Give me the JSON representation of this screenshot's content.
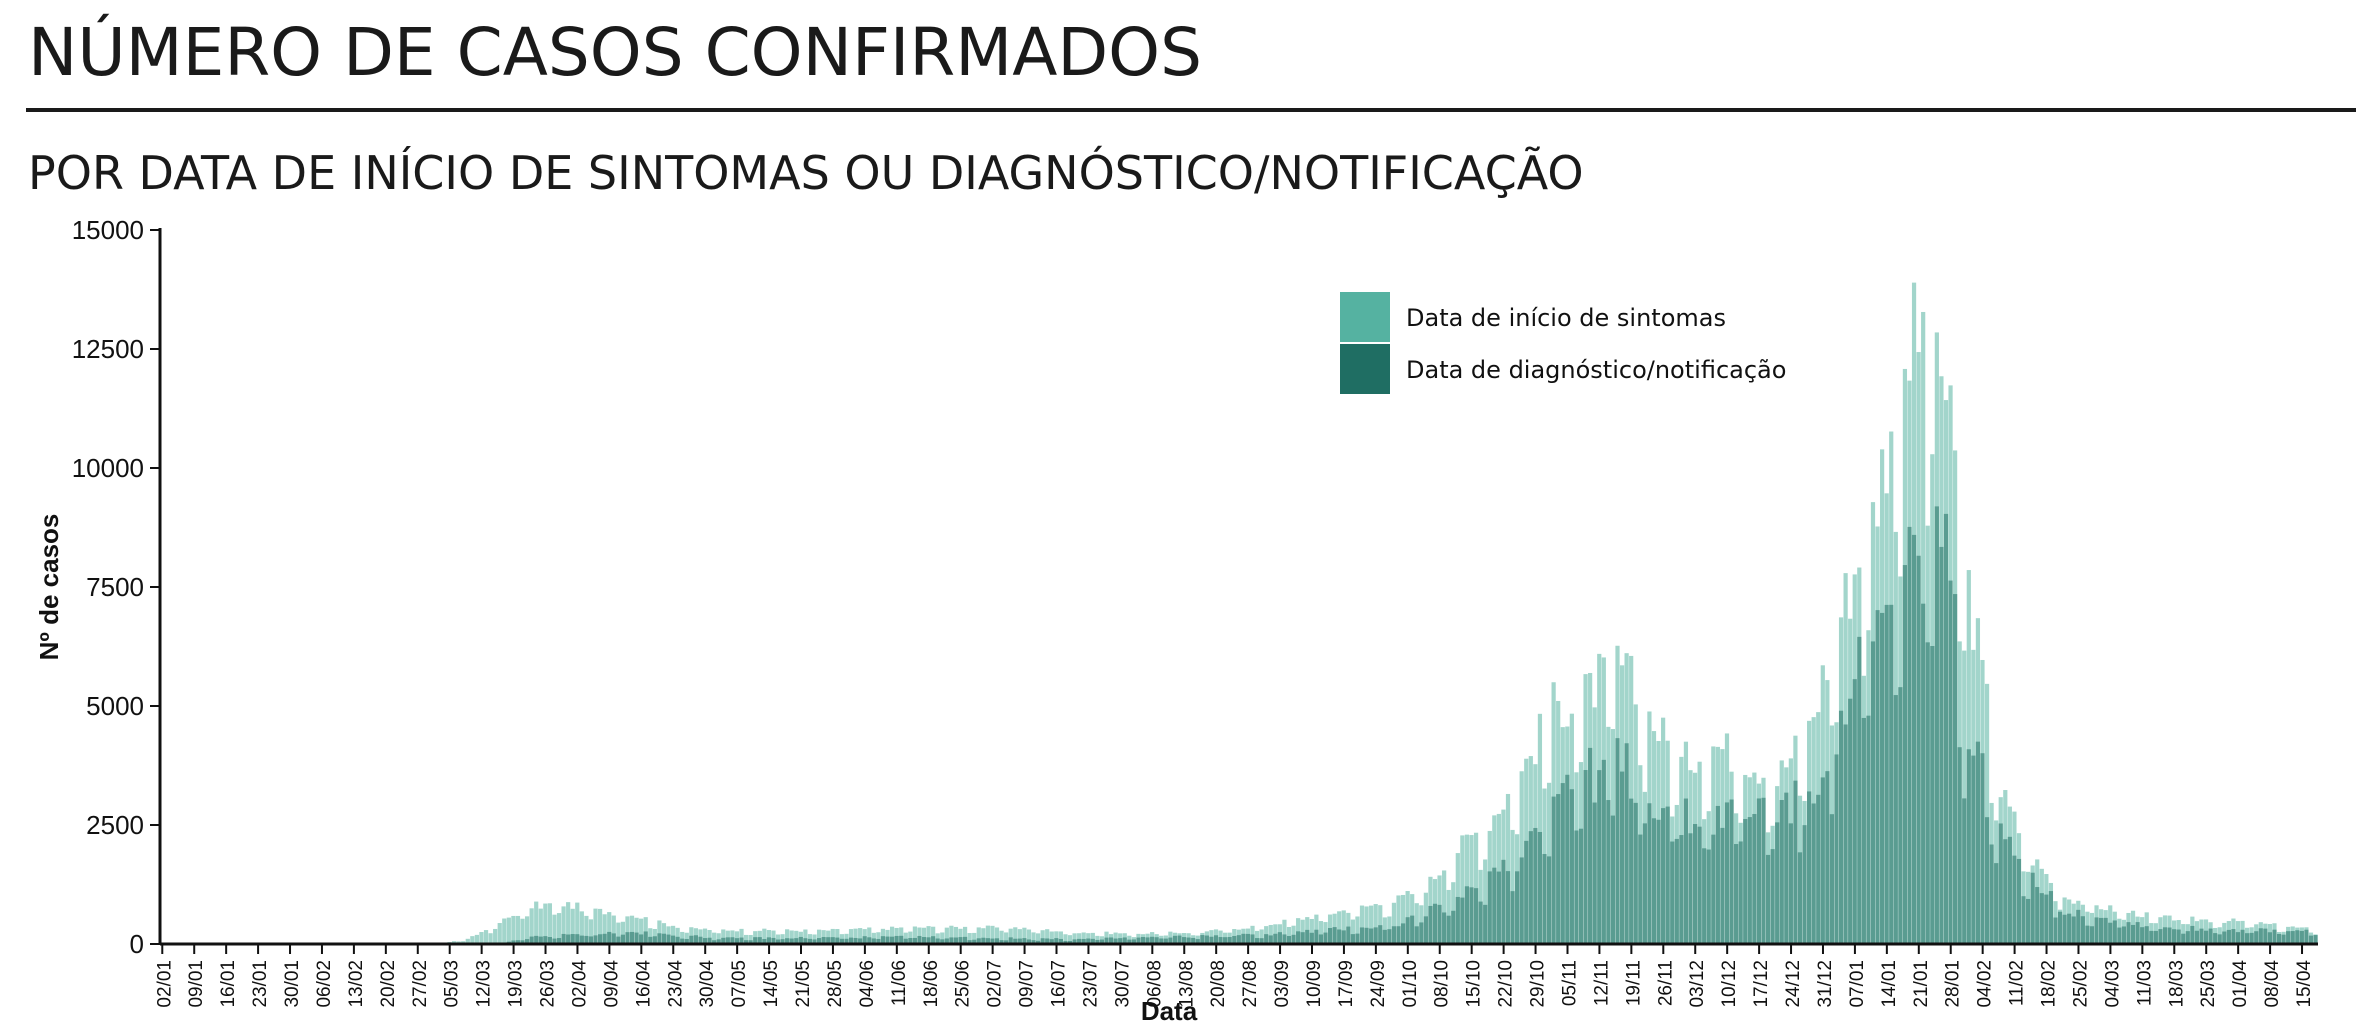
{
  "header": {
    "title": "NÚMERO DE CASOS CONFIRMADOS",
    "subtitle": "POR DATA DE INÍCIO DE SINTOMAS OU DIAGNÓSTICO/NOTIFICAÇÃO"
  },
  "colors": {
    "sintomas": "#55b2a1",
    "diagnostico": "#1f6e63",
    "axis": "#111111"
  },
  "chart_data": {
    "type": "bar",
    "xlabel": "Data",
    "ylabel": "Nº de casos",
    "ylim": [
      0,
      15000
    ],
    "yticks": [
      0,
      2500,
      5000,
      7500,
      10000,
      12500,
      15000
    ],
    "grid": false,
    "legend_position": "top-center",
    "x_start": "2020-01-02",
    "x_end": "2021-04-18",
    "x_tick_labels": [
      "02/01",
      "09/01",
      "16/01",
      "23/01",
      "30/01",
      "06/02",
      "13/02",
      "20/02",
      "27/02",
      "05/03",
      "12/03",
      "19/03",
      "26/03",
      "02/04",
      "09/04",
      "16/04",
      "23/04",
      "30/04",
      "07/05",
      "14/05",
      "21/05",
      "28/05",
      "04/06",
      "11/06",
      "18/06",
      "25/06",
      "02/07",
      "09/07",
      "16/07",
      "23/07",
      "30/07",
      "06/08",
      "13/08",
      "20/08",
      "27/08",
      "03/09",
      "10/09",
      "17/09",
      "24/09",
      "01/10",
      "08/10",
      "15/10",
      "22/10",
      "29/10",
      "05/11",
      "12/11",
      "19/11",
      "26/11",
      "03/12",
      "10/12",
      "17/12",
      "24/12",
      "31/12",
      "07/01",
      "14/01",
      "21/01",
      "28/01",
      "04/02",
      "11/02",
      "18/02",
      "25/02",
      "04/03",
      "11/03",
      "18/03",
      "25/03",
      "01/04",
      "08/04",
      "15/04"
    ],
    "series": [
      {
        "name": "Data de início de sintomas",
        "keypoints": [
          [
            "2020-01-02",
            0
          ],
          [
            "2020-03-02",
            0
          ],
          [
            "2020-03-09",
            100
          ],
          [
            "2020-03-16",
            450
          ],
          [
            "2020-03-23",
            800
          ],
          [
            "2020-03-30",
            850
          ],
          [
            "2020-04-06",
            700
          ],
          [
            "2020-04-13",
            650
          ],
          [
            "2020-04-20",
            450
          ],
          [
            "2020-04-27",
            320
          ],
          [
            "2020-05-04",
            300
          ],
          [
            "2020-05-25",
            280
          ],
          [
            "2020-06-15",
            350
          ],
          [
            "2020-07-06",
            350
          ],
          [
            "2020-07-20",
            250
          ],
          [
            "2020-08-03",
            220
          ],
          [
            "2020-08-17",
            250
          ],
          [
            "2020-08-31",
            400
          ],
          [
            "2020-09-14",
            650
          ],
          [
            "2020-09-28",
            900
          ],
          [
            "2020-10-05",
            1200
          ],
          [
            "2020-10-12",
            2000
          ],
          [
            "2020-10-19",
            2600
          ],
          [
            "2020-10-26",
            3600
          ],
          [
            "2020-11-02",
            5000
          ],
          [
            "2020-11-09",
            5200
          ],
          [
            "2020-11-16",
            6000
          ],
          [
            "2020-11-23",
            4800
          ],
          [
            "2020-11-30",
            3800
          ],
          [
            "2020-12-07",
            4200
          ],
          [
            "2020-12-14",
            3900
          ],
          [
            "2020-12-21",
            3500
          ],
          [
            "2020-12-28",
            4500
          ],
          [
            "2021-01-04",
            7000
          ],
          [
            "2021-01-11",
            9000
          ],
          [
            "2021-01-18",
            12500
          ],
          [
            "2021-01-25",
            13000
          ],
          [
            "2021-02-01",
            7500
          ],
          [
            "2021-02-08",
            3200
          ],
          [
            "2021-02-15",
            1800
          ],
          [
            "2021-02-22",
            1000
          ],
          [
            "2021-03-01",
            800
          ],
          [
            "2021-03-15",
            550
          ],
          [
            "2021-04-01",
            480
          ],
          [
            "2021-04-18",
            300
          ]
        ]
      },
      {
        "name": "Data de diagnóstico/notificação",
        "keypoints": [
          [
            "2020-01-02",
            0
          ],
          [
            "2020-03-16",
            0
          ],
          [
            "2020-03-23",
            150
          ],
          [
            "2020-04-13",
            250
          ],
          [
            "2020-05-04",
            120
          ],
          [
            "2020-06-15",
            150
          ],
          [
            "2020-07-20",
            100
          ],
          [
            "2020-08-31",
            200
          ],
          [
            "2020-09-28",
            400
          ],
          [
            "2020-10-12",
            900
          ],
          [
            "2020-10-26",
            2000
          ],
          [
            "2020-11-02",
            3200
          ],
          [
            "2020-11-16",
            3800
          ],
          [
            "2020-11-30",
            2600
          ],
          [
            "2020-12-14",
            2800
          ],
          [
            "2020-12-28",
            3000
          ],
          [
            "2021-01-04",
            5000
          ],
          [
            "2021-01-18",
            7500
          ],
          [
            "2021-01-25",
            9000
          ],
          [
            "2021-02-01",
            4500
          ],
          [
            "2021-02-08",
            2200
          ],
          [
            "2021-02-22",
            700
          ],
          [
            "2021-03-15",
            350
          ],
          [
            "2021-04-18",
            250
          ]
        ]
      }
    ]
  }
}
